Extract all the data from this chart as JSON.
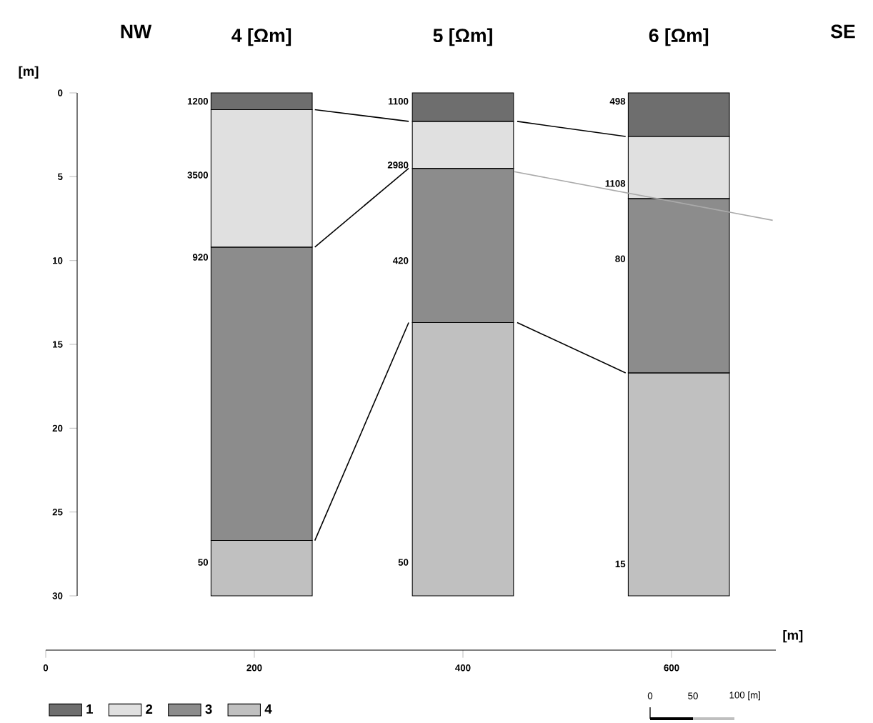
{
  "chart_data": {
    "type": "bar",
    "stacked": true,
    "x": [
      207,
      400,
      607
    ],
    "xlim": [
      0,
      700
    ],
    "xticks": [
      0,
      200,
      400,
      600
    ],
    "xlabel": "[m]",
    "ylabel": "[m]",
    "ylim": [
      30,
      0
    ],
    "yticks": [
      0,
      5,
      10,
      15,
      20,
      25,
      30
    ],
    "legend": "bottom left",
    "annotations": [
      "NW",
      "4 [Ωm]",
      "5 [Ωm]",
      "6 [Ωm]",
      "SE",
      "0",
      "50",
      "100 [m]",
      {
        "text": "1200",
        "x": 159,
        "y": 0.5
      },
      {
        "text": "3500",
        "x": 159,
        "y": 4.9
      },
      {
        "text": "920",
        "x": 159,
        "y": 9.8
      },
      {
        "text": "50",
        "x": 159,
        "y": 28
      },
      {
        "text": "1100",
        "x": 351,
        "y": 0.5
      },
      {
        "text": "2980",
        "x": 351,
        "y": 4.3
      },
      {
        "text": "420",
        "x": 351,
        "y": 10
      },
      {
        "text": "50",
        "x": 351,
        "y": 28
      },
      {
        "text": "498",
        "x": 559,
        "y": 0.5
      },
      {
        "text": "1108",
        "x": 559,
        "y": 5.4
      },
      {
        "text": "80",
        "x": 559,
        "y": 9.9
      },
      {
        "text": "15",
        "x": 559,
        "y": 28.1
      }
    ],
    "series": [
      {
        "name": "1",
        "color": "#6e6e6e",
        "values": [
          1.0,
          1.7,
          2.6
        ]
      },
      {
        "name": "2",
        "color": "#e0e0e0",
        "values": [
          8.2,
          2.8,
          3.7
        ]
      },
      {
        "name": "3",
        "color": "#8c8c8c",
        "values": [
          17.5,
          9.2,
          10.4
        ]
      },
      {
        "name": "4",
        "color": "#c0c0c0",
        "values": [
          3.3,
          16.3,
          13.3
        ]
      },
      {
        "type": "line",
        "x": [
          258,
          348
        ],
        "values": [
          1.0,
          1.7
        ],
        "color": "#000000"
      },
      {
        "type": "line",
        "x": [
          452,
          556
        ],
        "values": [
          1.7,
          2.6
        ],
        "color": "#000000"
      },
      {
        "type": "line",
        "x": [
          258,
          348
        ],
        "values": [
          9.2,
          4.5
        ],
        "color": "#000000"
      },
      {
        "type": "line",
        "x": [
          449,
          697
        ],
        "values": [
          4.7,
          7.6
        ],
        "color": "#aaaaaa"
      },
      {
        "type": "line",
        "x": [
          258,
          348
        ],
        "values": [
          26.7,
          13.7
        ],
        "color": "#000000"
      },
      {
        "type": "line",
        "x": [
          452,
          556
        ],
        "values": [
          13.7,
          16.7
        ],
        "color": "#000000"
      }
    ]
  }
}
